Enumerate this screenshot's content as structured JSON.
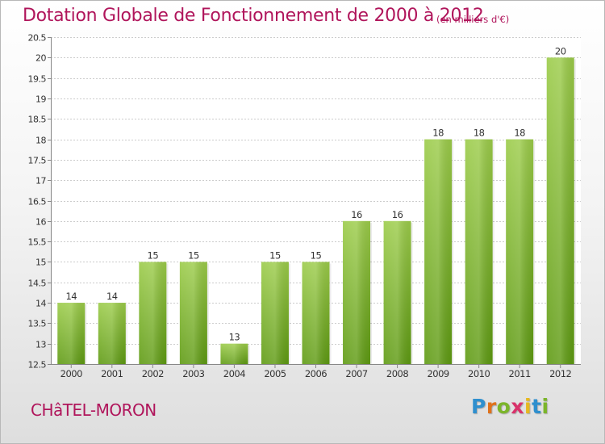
{
  "header": {
    "title": "Dotation Globale de Fonctionnement de 2000 à 2012",
    "unit_note": "(en milliers d'€)"
  },
  "footer": {
    "town": "CHâTEL-MORON",
    "brand_letters": [
      "P",
      "r",
      "o",
      "x",
      "i",
      "t",
      "i"
    ]
  },
  "colors": {
    "title": "#b0155b",
    "bar_top": "#9ccc4a",
    "bar_bottom": "#5e9a12",
    "grid": "#cccccc"
  },
  "chart_data": {
    "type": "bar",
    "categories": [
      "2000",
      "2001",
      "2002",
      "2003",
      "2004",
      "2005",
      "2006",
      "2007",
      "2008",
      "2009",
      "2010",
      "2011",
      "2012"
    ],
    "values": [
      14,
      14,
      15,
      15,
      13,
      15,
      15,
      16,
      16,
      18,
      18,
      18,
      20
    ],
    "data_labels": [
      "14",
      "14",
      "15",
      "15",
      "13",
      "15",
      "15",
      "16",
      "16",
      "18",
      "18",
      "18",
      "20"
    ],
    "title": "Dotation Globale de Fonctionnement de 2000 à 2012",
    "xlabel": "",
    "ylabel": "",
    "ylim": [
      12.5,
      20.5
    ],
    "yticks": [
      "12.5",
      "13",
      "13.5",
      "14",
      "14.5",
      "15",
      "15.5",
      "16",
      "16.5",
      "17",
      "17.5",
      "18",
      "18.5",
      "19",
      "19.5",
      "20",
      "20.5"
    ],
    "grid": true
  }
}
